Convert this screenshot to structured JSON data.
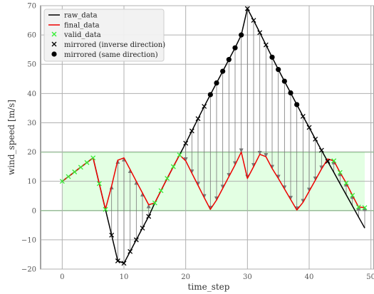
{
  "chart_data": {
    "type": "line",
    "xlabel": "time_step",
    "ylabel": "wind_speed [m/s]",
    "xlim": [
      -3.5,
      50.5
    ],
    "ylim": [
      -20,
      70
    ],
    "xticks": [
      0,
      10,
      20,
      30,
      40,
      50
    ],
    "yticks": [
      -20,
      -10,
      0,
      10,
      20,
      30,
      40,
      50,
      60,
      70
    ],
    "grid": true,
    "legend_position": "top-left",
    "valid_band": {
      "lower": 0,
      "upper": 20,
      "color": "#ccffcc",
      "line_color": "#33cc33"
    },
    "x": [
      0,
      1,
      2,
      3,
      4,
      5,
      6,
      7,
      8,
      9,
      10,
      11,
      12,
      13,
      14,
      15,
      16,
      17,
      18,
      19,
      20,
      21,
      22,
      23,
      24,
      25,
      26,
      27,
      28,
      29,
      30,
      31,
      32,
      33,
      34,
      35,
      36,
      37,
      38,
      39,
      40,
      41,
      42,
      43,
      44,
      45,
      46,
      47,
      48,
      49
    ],
    "series": [
      {
        "name": "raw_data",
        "color": "#000000",
        "values": [
          10,
          11.6,
          13.2,
          14.8,
          16.4,
          18,
          9.2,
          0.4,
          -8.4,
          -17.2,
          -18,
          -14,
          -10,
          -6,
          -2,
          2.6,
          6.8,
          11,
          15,
          19,
          23,
          27.2,
          31.4,
          35.6,
          39.6,
          43.6,
          47.6,
          51.6,
          55.6,
          60,
          69,
          65,
          60.8,
          56.6,
          52.4,
          48.2,
          44.2,
          40.2,
          36.2,
          32.2,
          28.4,
          24.4,
          20.6,
          16.8,
          13,
          9.2,
          5.4,
          1.6,
          -2.2,
          -6
        ]
      },
      {
        "name": "final_data",
        "color": "#ee0000",
        "values": [
          10,
          11.6,
          13.2,
          14.8,
          16.4,
          18,
          9.2,
          0.4,
          8.4,
          17.2,
          18,
          14,
          10,
          6,
          2,
          2.6,
          6.8,
          11,
          15,
          19,
          17,
          12.8,
          8.6,
          4.4,
          0.4,
          3.6,
          7.6,
          11.6,
          15.6,
          20,
          11,
          15,
          19.2,
          18.4,
          14.4,
          11,
          7.4,
          3.8,
          0.2,
          2.8,
          6.6,
          10.4,
          14.2,
          17.6,
          17,
          13,
          9.4,
          5.2,
          1.2,
          1
        ]
      },
      {
        "name": "valid_data",
        "color": "#33ee33",
        "x": [
          0,
          1,
          2,
          3,
          4,
          5,
          6,
          7,
          15,
          16,
          17,
          18,
          19,
          44,
          45,
          46,
          47,
          48,
          49
        ],
        "values": [
          10,
          11.6,
          13.2,
          14.8,
          16.4,
          18,
          9.2,
          0.4,
          2.6,
          6.8,
          11,
          15,
          19,
          17,
          13,
          9.4,
          5.2,
          1.2,
          1
        ]
      },
      {
        "name": "mirrored (inverse direction)",
        "color": "#000000",
        "x": [
          8,
          9,
          10,
          11,
          12,
          13,
          14,
          20,
          21,
          22,
          23,
          30,
          31,
          32,
          33,
          39,
          40,
          41,
          42,
          43
        ],
        "values": [
          -8.4,
          -17.2,
          -18,
          -14,
          -10,
          -6,
          -2,
          23,
          27.2,
          31.4,
          35.6,
          69,
          65,
          60.8,
          56.6,
          32.2,
          28.4,
          24.4,
          20.6,
          16.8
        ]
      },
      {
        "name": "mirrored (same direction)",
        "color": "#000000",
        "x": [
          24,
          25,
          26,
          27,
          28,
          29,
          34,
          35,
          36,
          37,
          38
        ],
        "values": [
          39.6,
          43.6,
          47.6,
          51.6,
          55.6,
          60,
          52.4,
          48.2,
          44.2,
          40.2,
          36.2
        ]
      }
    ]
  }
}
